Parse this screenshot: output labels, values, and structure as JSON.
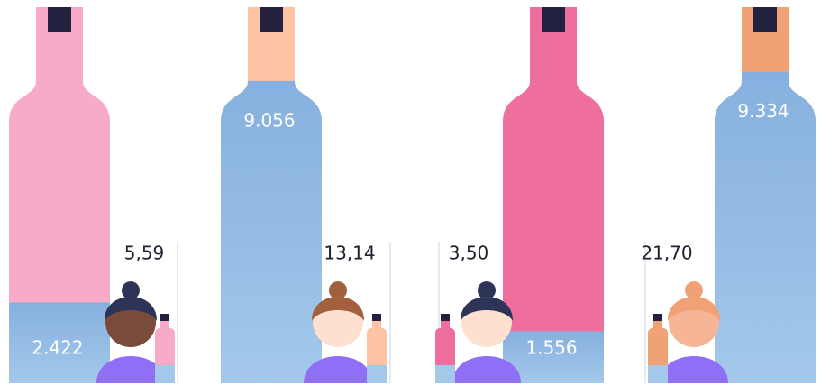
{
  "chart_data": {
    "type": "bottle",
    "values": [
      2422,
      9056,
      1556,
      9334
    ],
    "value_labels": [
      "2.422",
      "9.056",
      "1.556",
      "9.334"
    ],
    "small_values": [
      5.59,
      13.14,
      3.5,
      21.7
    ],
    "small_value_labels": [
      "5,59",
      "13,14",
      "3,50",
      "21,70"
    ],
    "color": "#8cb6e2",
    "top_colors": [
      "#f8abc9",
      "#fcc4a4",
      "#ee6f9d",
      "#f0a274"
    ],
    "ylim": [
      0,
      11270
    ]
  }
}
